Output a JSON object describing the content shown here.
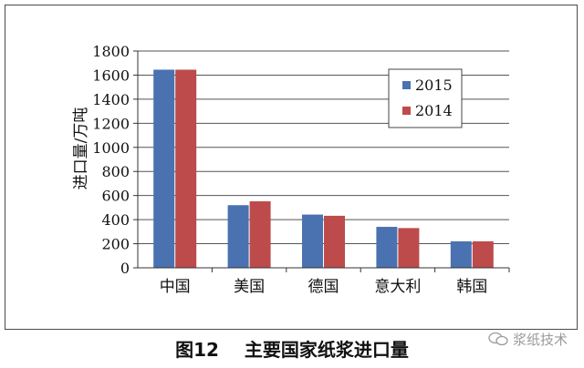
{
  "chart_data": {
    "type": "bar",
    "categories": [
      "中国",
      "美国",
      "德国",
      "意大利",
      "韩国"
    ],
    "series": [
      {
        "name": "2015",
        "values": [
          1645,
          520,
          442,
          340,
          220
        ],
        "color": "#4a72b0"
      },
      {
        "name": "2014",
        "values": [
          1645,
          552,
          432,
          330,
          220
        ],
        "color": "#bd4b4b"
      }
    ],
    "ylabel": "进口量/万吨",
    "ylim": [
      0,
      1800
    ],
    "yticks": [
      0,
      200,
      400,
      600,
      800,
      1000,
      1200,
      1400,
      1600,
      1800
    ],
    "grid": true,
    "legend_position": "top-right"
  },
  "caption": {
    "figure_number": "图12",
    "title": "主要国家纸浆进口量"
  },
  "watermark": {
    "text": "浆纸技术",
    "icon": "wechat-icon"
  }
}
